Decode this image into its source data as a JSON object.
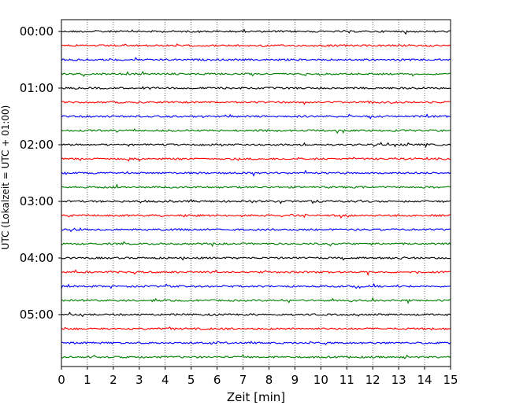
{
  "chart_data": {
    "type": "line",
    "title": "",
    "xlabel": "Zeit  [min]",
    "ylabel": "UTC (Lokalzeit = UTC + 01:00)",
    "xlim": [
      0,
      15
    ],
    "xticks": [
      "0",
      "1",
      "2",
      "3",
      "4",
      "5",
      "6",
      "7",
      "8",
      "9",
      "10",
      "11",
      "12",
      "13",
      "14",
      "15"
    ],
    "yticks": [
      "00:00",
      "01:00",
      "02:00",
      "03:00",
      "04:00",
      "05:00"
    ],
    "grid": "vertical dotted at each minute",
    "trace_interval_minutes": 15,
    "trace_colors": [
      "#000000",
      "#ff0000",
      "#0000ff",
      "#007f00"
    ],
    "traces": [
      {
        "start": "00:00"
      },
      {
        "start": "00:15"
      },
      {
        "start": "00:30"
      },
      {
        "start": "00:45"
      },
      {
        "start": "01:00"
      },
      {
        "start": "01:15"
      },
      {
        "start": "01:30"
      },
      {
        "start": "01:45"
      },
      {
        "start": "02:00"
      },
      {
        "start": "02:15"
      },
      {
        "start": "02:30"
      },
      {
        "start": "02:45"
      },
      {
        "start": "03:00"
      },
      {
        "start": "03:15"
      },
      {
        "start": "03:30"
      },
      {
        "start": "03:45"
      },
      {
        "start": "04:00"
      },
      {
        "start": "04:15"
      },
      {
        "start": "04:30"
      },
      {
        "start": "04:45"
      },
      {
        "start": "05:00"
      },
      {
        "start": "05:15"
      },
      {
        "start": "05:30"
      },
      {
        "start": "05:45"
      }
    ]
  }
}
